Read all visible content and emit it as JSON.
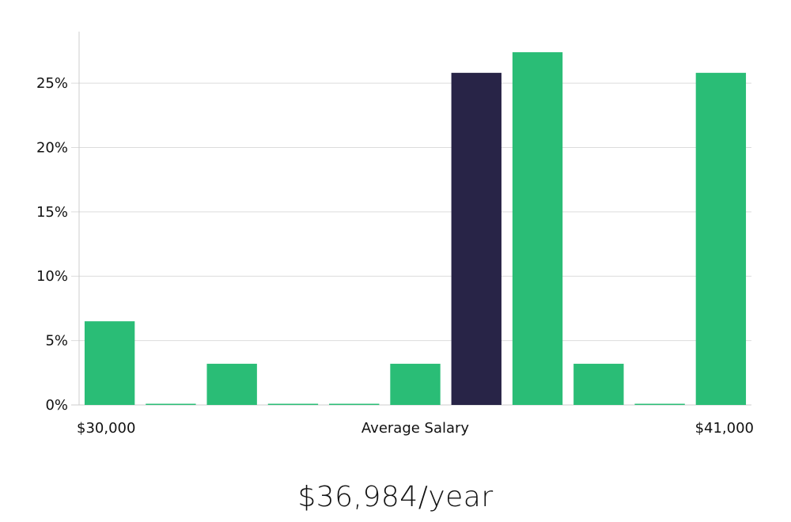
{
  "chart_data": {
    "type": "bar",
    "categories": [
      "1",
      "2",
      "3",
      "4",
      "5",
      "6",
      "7",
      "8",
      "9",
      "10",
      "11"
    ],
    "values": [
      6.5,
      0,
      3.2,
      0,
      0,
      3.2,
      25.8,
      27.4,
      3.2,
      0,
      25.8
    ],
    "highlight_index": 6,
    "ylim": [
      0,
      29
    ],
    "yticks": [
      0,
      5,
      10,
      15,
      20,
      25
    ],
    "ytick_format": "%",
    "x_labels": {
      "left": "$30,000",
      "center": "Average Salary",
      "right": "$41,000"
    },
    "grid": "horizontal",
    "colors": {
      "bar": "#2abd76",
      "highlight": "#282447",
      "grid": "#dcdcdc",
      "axis": "#cccccc"
    }
  },
  "summary": {
    "salary_text": "$36,984/year"
  }
}
